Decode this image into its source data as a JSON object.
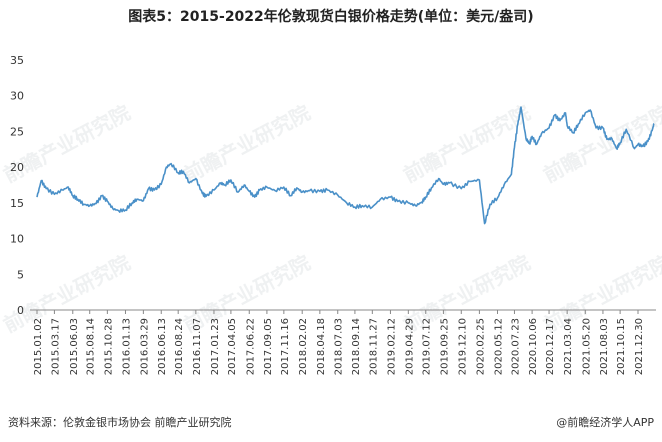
{
  "title": "图表5：2015-2022年伦敦现货白银价格走势(单位：美元/盎司)",
  "footer": {
    "source": "资料来源：伦敦金银市场协会 前瞻产业研究院",
    "brand": "@前瞻经济学人APP"
  },
  "watermark": "前瞻产业研究院",
  "colors": {
    "line": "#4a90c8",
    "axis": "#888888",
    "text": "#333333"
  },
  "chart_data": {
    "type": "line",
    "title": "图表5：2015-2022年伦敦现货白银价格走势(单位：美元/盎司)",
    "xlabel": "",
    "ylabel": "",
    "ylim": [
      0,
      35
    ],
    "yticks": [
      0,
      5,
      10,
      15,
      20,
      25,
      30,
      35
    ],
    "grid": false,
    "xtick_labels": [
      "2015.01.02",
      "2015.03.17",
      "2015.06.03",
      "2015.08.14",
      "2015.10.28",
      "2016.01.13",
      "2016.03.29",
      "2016.06.13",
      "2016.08.24",
      "2016.11.07",
      "2017.01.23",
      "2017.04.05",
      "2017.06.22",
      "2017.09.05",
      "2017.11.16",
      "2018.02.02",
      "2018.04.18",
      "2018.07.03",
      "2018.09.14",
      "2018.11.27",
      "2019.02.12",
      "2019.04.29",
      "2019.07.12",
      "2019.09.25",
      "2019.12.10",
      "2020.02.25",
      "2020.05.12",
      "2020.07.23",
      "2020.10.06",
      "2020.12.17",
      "2021.03.04",
      "2021.05.20",
      "2021.08.03",
      "2021.10.15",
      "2021.12.30"
    ],
    "series": [
      {
        "x": [
          "2015.01.02",
          "2015.01.20",
          "2015.02.10",
          "2015.03.17",
          "2015.04.20",
          "2015.05.15",
          "2015.06.03",
          "2015.06.25",
          "2015.07.20",
          "2015.08.14",
          "2015.09.10",
          "2015.10.05",
          "2015.10.28",
          "2015.11.20",
          "2015.12.15",
          "2016.01.13",
          "2016.02.10",
          "2016.03.01",
          "2016.03.29",
          "2016.04.20",
          "2016.05.15",
          "2016.06.13",
          "2016.07.05",
          "2016.07.25",
          "2016.08.24",
          "2016.09.15",
          "2016.10.10",
          "2016.11.07",
          "2016.12.05",
          "2016.12.20",
          "2017.01.23",
          "2017.02.20",
          "2017.03.10",
          "2017.04.05",
          "2017.05.05",
          "2017.06.01",
          "2017.06.22",
          "2017.07.15",
          "2017.08.05",
          "2017.09.05",
          "2017.10.10",
          "2017.11.16",
          "2017.12.15",
          "2018.01.10",
          "2018.02.02",
          "2018.03.05",
          "2018.04.18",
          "2018.05.20",
          "2018.07.03",
          "2018.08.10",
          "2018.09.14",
          "2018.10.15",
          "2018.11.27",
          "2018.12.31",
          "2019.02.12",
          "2019.03.15",
          "2019.04.29",
          "2019.05.30",
          "2019.06.25",
          "2019.07.12",
          "2019.08.05",
          "2019.09.05",
          "2019.09.25",
          "2019.10.20",
          "2019.12.10",
          "2020.01.15",
          "2020.02.25",
          "2020.03.18",
          "2020.04.10",
          "2020.05.12",
          "2020.06.10",
          "2020.07.10",
          "2020.07.23",
          "2020.08.06",
          "2020.08.20",
          "2020.09.10",
          "2020.09.25",
          "2020.10.06",
          "2020.10.25",
          "2020.11.15",
          "2020.12.17",
          "2021.01.10",
          "2021.02.01",
          "2021.02.25",
          "2021.03.04",
          "2021.03.30",
          "2021.04.20",
          "2021.05.20",
          "2021.06.10",
          "2021.07.05",
          "2021.08.03",
          "2021.08.20",
          "2021.09.10",
          "2021.09.30",
          "2021.10.15",
          "2021.11.10",
          "2021.12.15",
          "2021.12.30",
          "2022.01.20",
          "2022.02.10",
          "2022.02.28",
          "2022.03.08"
        ],
        "values": [
          15.8,
          18.1,
          17.0,
          16.2,
          16.8,
          17.2,
          16.0,
          15.5,
          14.8,
          14.6,
          14.9,
          16.0,
          15.2,
          14.2,
          13.9,
          14.0,
          15.0,
          15.5,
          15.3,
          17.0,
          16.8,
          17.6,
          20.0,
          20.5,
          19.2,
          19.4,
          17.8,
          18.4,
          16.3,
          15.9,
          16.8,
          17.8,
          17.5,
          18.2,
          16.5,
          17.5,
          16.6,
          15.8,
          16.8,
          17.2,
          16.7,
          17.2,
          16.0,
          17.1,
          16.5,
          16.7,
          16.6,
          16.8,
          16.1,
          15.0,
          14.4,
          14.6,
          14.4,
          15.5,
          15.8,
          15.2,
          15.0,
          14.6,
          15.1,
          15.8,
          17.1,
          18.4,
          17.6,
          17.8,
          17.0,
          18.0,
          18.2,
          12.1,
          14.8,
          15.7,
          17.6,
          19.0,
          22.8,
          26.0,
          28.4,
          24.0,
          23.3,
          24.3,
          23.2,
          24.7,
          25.5,
          27.3,
          26.5,
          27.6,
          25.8,
          24.8,
          26.0,
          27.6,
          28.0,
          25.5,
          25.5,
          23.9,
          24.0,
          22.6,
          23.4,
          25.3,
          22.6,
          23.2,
          22.9,
          23.6,
          25.1,
          26.1
        ]
      }
    ]
  }
}
